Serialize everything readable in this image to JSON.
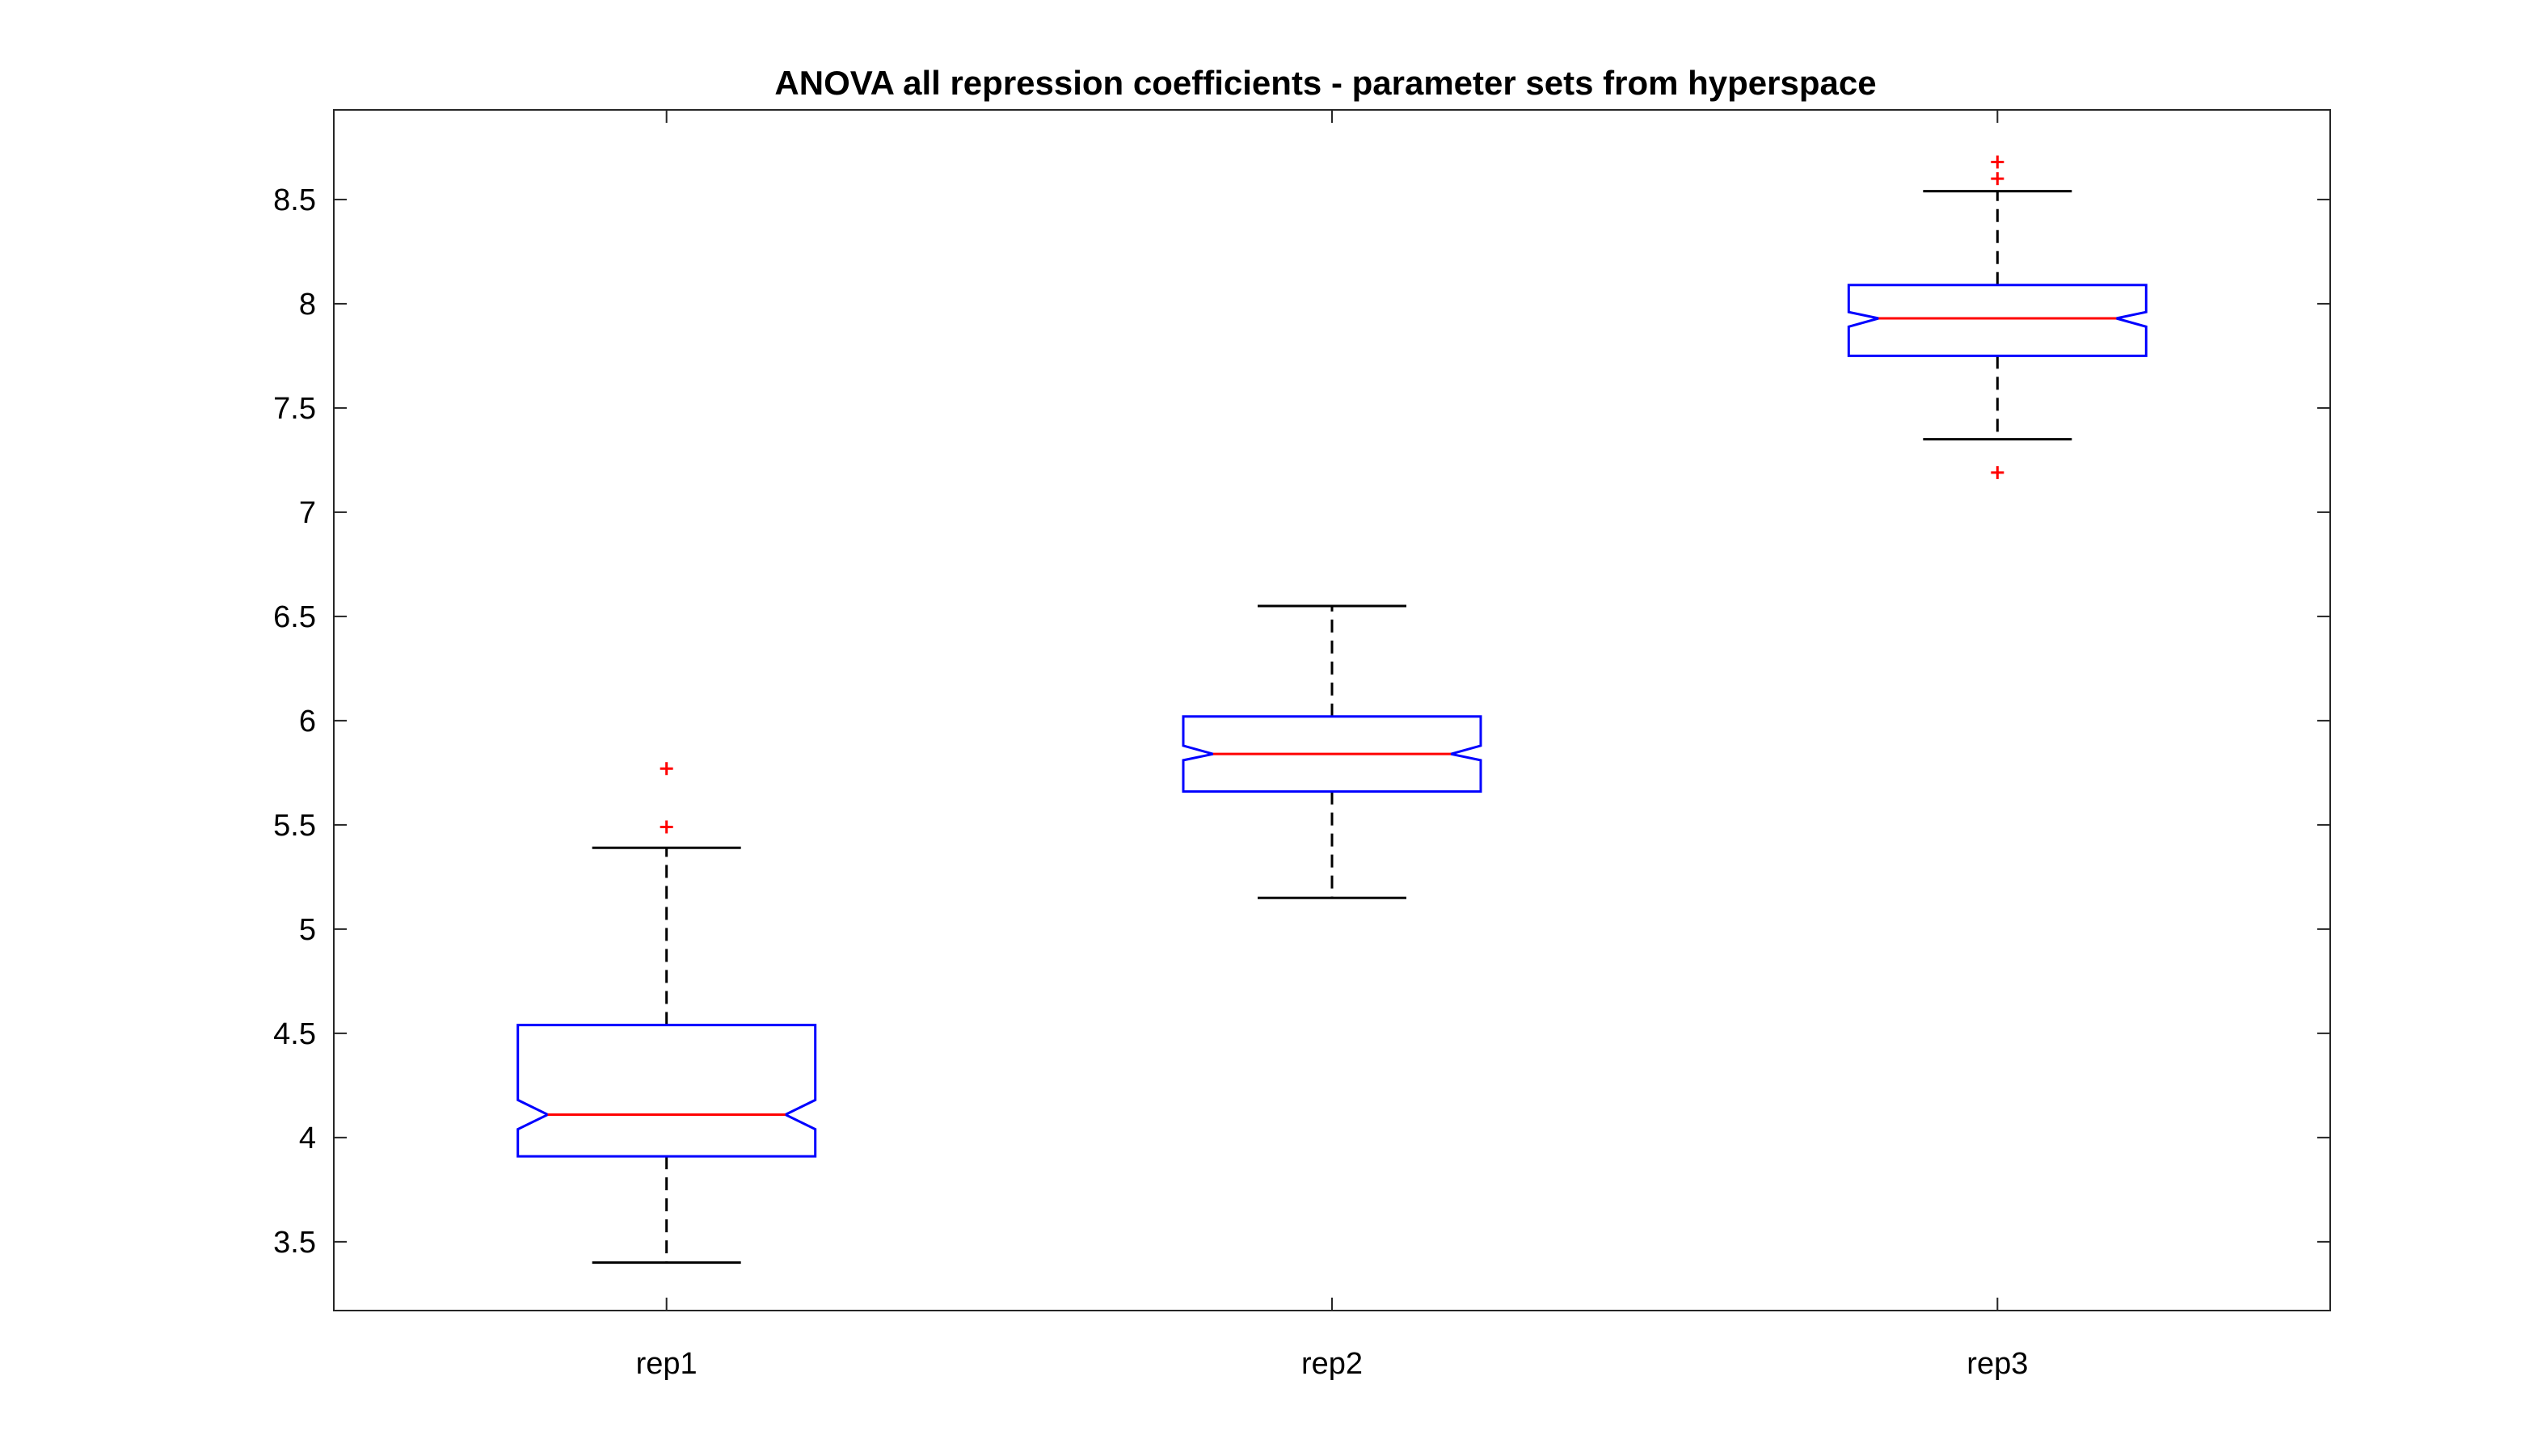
{
  "chart_data": {
    "type": "box",
    "title": "ANOVA all repression coefficients - parameter sets from hyperspace",
    "xlabel": "",
    "ylabel": "",
    "categories": [
      "rep1",
      "rep2",
      "rep3"
    ],
    "ylim": [
      3.17,
      8.93
    ],
    "yticks": [
      3.5,
      4,
      4.5,
      5,
      5.5,
      6,
      6.5,
      7,
      7.5,
      8,
      8.5
    ],
    "ytick_labels": [
      "3.5",
      "4",
      "4.5",
      "5",
      "5.5",
      "6",
      "6.5",
      "7",
      "7.5",
      "8",
      "8.5"
    ],
    "grid": false,
    "notched": true,
    "boxes": [
      {
        "category": "rep1",
        "whisker_low": 3.4,
        "q1": 3.91,
        "notch_low": 4.04,
        "median": 4.11,
        "notch_high": 4.18,
        "q3": 4.54,
        "whisker_high": 5.39,
        "outliers": [
          5.49,
          5.77
        ]
      },
      {
        "category": "rep2",
        "whisker_low": 5.15,
        "q1": 5.66,
        "notch_low": 5.81,
        "median": 5.84,
        "notch_high": 5.88,
        "q3": 6.02,
        "whisker_high": 6.55,
        "outliers": []
      },
      {
        "category": "rep3",
        "whisker_low": 7.35,
        "q1": 7.75,
        "notch_low": 7.89,
        "median": 7.93,
        "notch_high": 7.96,
        "q3": 8.09,
        "whisker_high": 8.54,
        "outliers": [
          7.19,
          8.6,
          8.68
        ]
      }
    ]
  },
  "colors": {
    "box": "#0000ff",
    "median": "#ff0000",
    "whisker": "#000000",
    "outlier": "#ff0000",
    "axes": "#262626"
  }
}
